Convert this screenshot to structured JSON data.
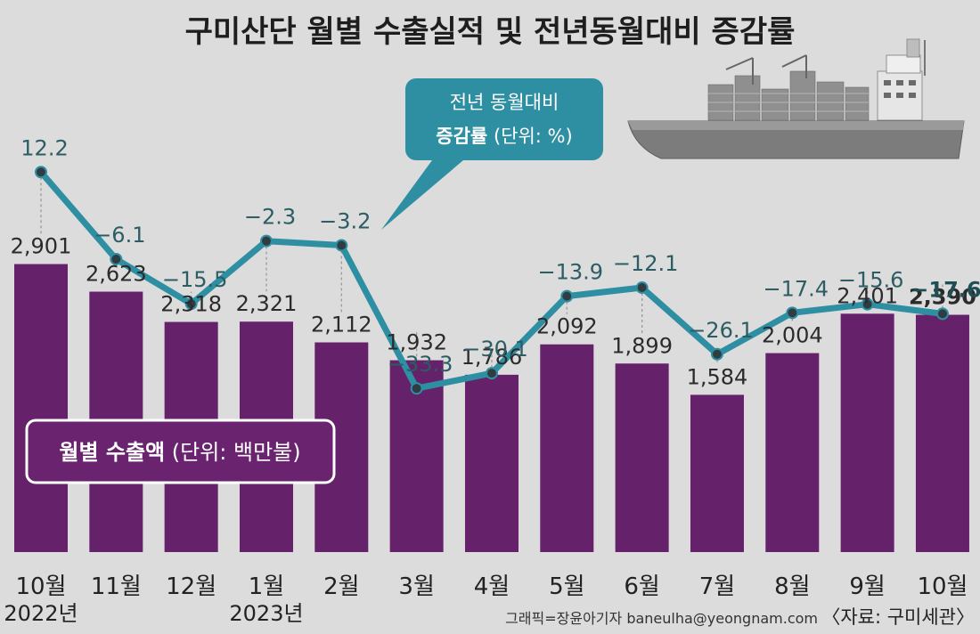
{
  "title": "구미산단 월별 수출실적 및 전년동월대비 증감률",
  "legend_bar": {
    "bold": "월별 수출액",
    "rest": "(단위: 백만불)"
  },
  "legend_line": {
    "line1": "전년 동월대비",
    "bold": "증감률",
    "rest": "(단위: %)"
  },
  "credit": "그래픽=장윤아기자 baneulha@yeongnam.com",
  "source": "〈자료: 구미세관〉",
  "colors": {
    "bar": "#65216a",
    "line": "#2e8fa3",
    "background": "#dcdcdc",
    "callout": "#2e8fa3"
  },
  "icon": "container-ship-icon",
  "chart_data": {
    "type": "bar",
    "categories": [
      "10월",
      "11월",
      "12월",
      "1월",
      "2월",
      "3월",
      "4월",
      "5월",
      "6월",
      "7월",
      "8월",
      "9월",
      "10월"
    ],
    "year_labels": [
      {
        "index": 0,
        "text": "2022년"
      },
      {
        "index": 3,
        "text": "2023년"
      }
    ],
    "series": [
      {
        "name": "월별 수출액",
        "type": "bar",
        "values": [
          2901,
          2623,
          2318,
          2321,
          2112,
          1932,
          1786,
          2092,
          1899,
          1584,
          2004,
          2401,
          2390
        ],
        "labels": [
          "2,901",
          "2,623",
          "2,318",
          "2,321",
          "2,112",
          "1,932",
          "1,786",
          "2,092",
          "1,899",
          "1,584",
          "2,004",
          "2,401",
          "2,390"
        ]
      },
      {
        "name": "전년 동월대비 증감률",
        "type": "line",
        "values": [
          12.2,
          -6.1,
          -15.5,
          -2.3,
          -3.2,
          -33.3,
          -30.1,
          -13.9,
          -12.1,
          -26.1,
          -17.4,
          -15.6,
          -17.6
        ],
        "labels": [
          "12.2",
          "−6.1",
          "−15.5",
          "−2.3",
          "−3.2",
          "−33.3",
          "−30.1",
          "−13.9",
          "−12.1",
          "−26.1",
          "−17.4",
          "−15.6",
          "−17.6"
        ]
      }
    ]
  }
}
